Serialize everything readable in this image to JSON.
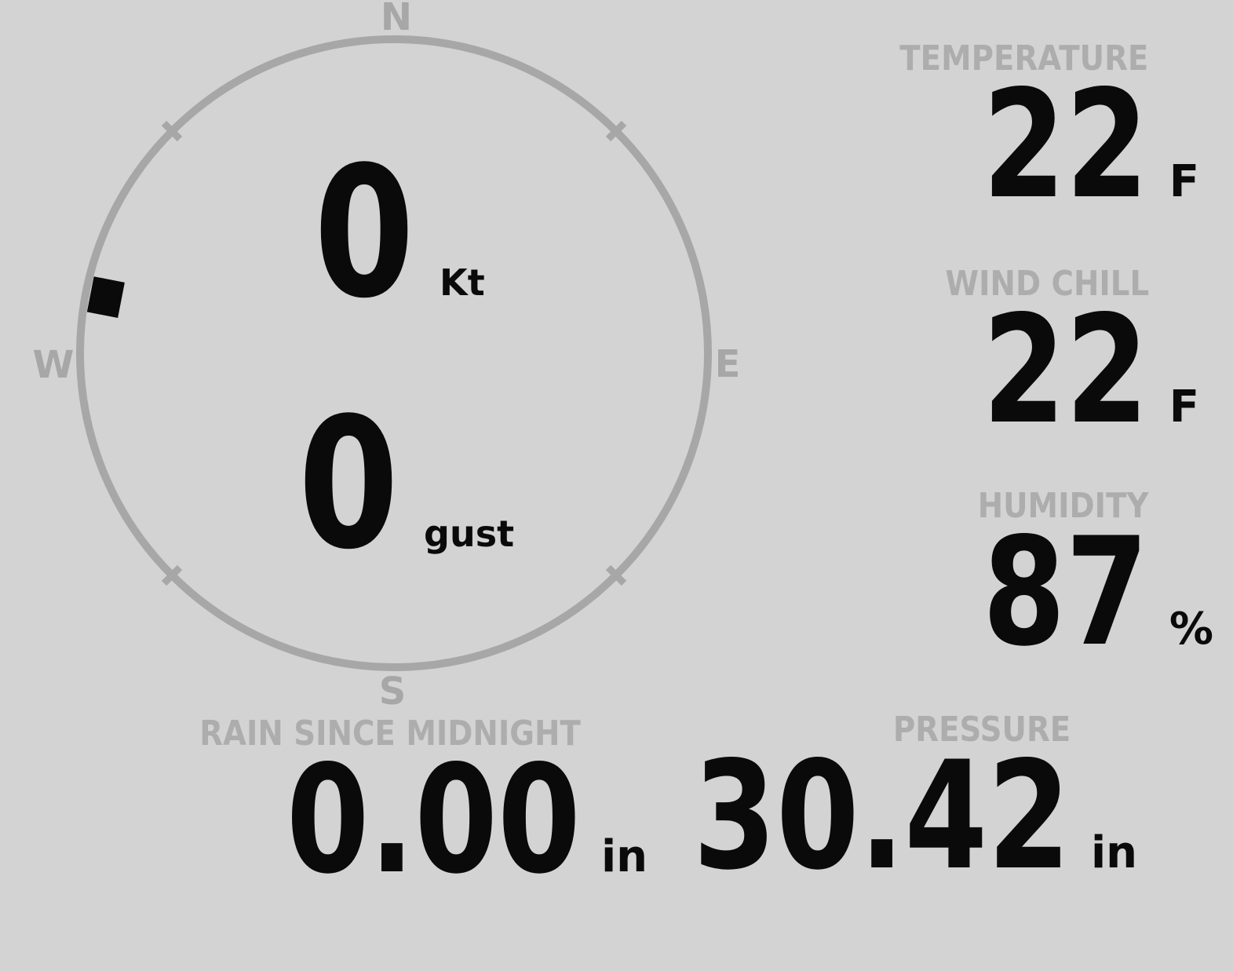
{
  "compass": {
    "labels": {
      "north": "N",
      "east": "E",
      "south": "S",
      "west": "W"
    },
    "direction_deg": 281,
    "wind_speed": {
      "value": "0",
      "unit": "Kt"
    },
    "wind_gust": {
      "value": "0",
      "unit": "gust"
    }
  },
  "metrics": {
    "temperature": {
      "label": "TEMPERATURE",
      "value": "22",
      "unit": "F"
    },
    "wind_chill": {
      "label": "WIND CHILL",
      "value": "22",
      "unit": "F"
    },
    "humidity": {
      "label": "HUMIDITY",
      "value": "87",
      "unit": "%"
    },
    "rain_since_midnight": {
      "label": "RAIN SINCE MIDNIGHT",
      "value": "0.00",
      "unit": "in"
    },
    "pressure": {
      "label": "PRESSURE",
      "value": "30.42",
      "unit": "in"
    }
  },
  "colors": {
    "background": "#d3d3d3",
    "dial": "#a7a7a7",
    "label_gray": "#adadad",
    "value_black": "#0a0a0a"
  }
}
